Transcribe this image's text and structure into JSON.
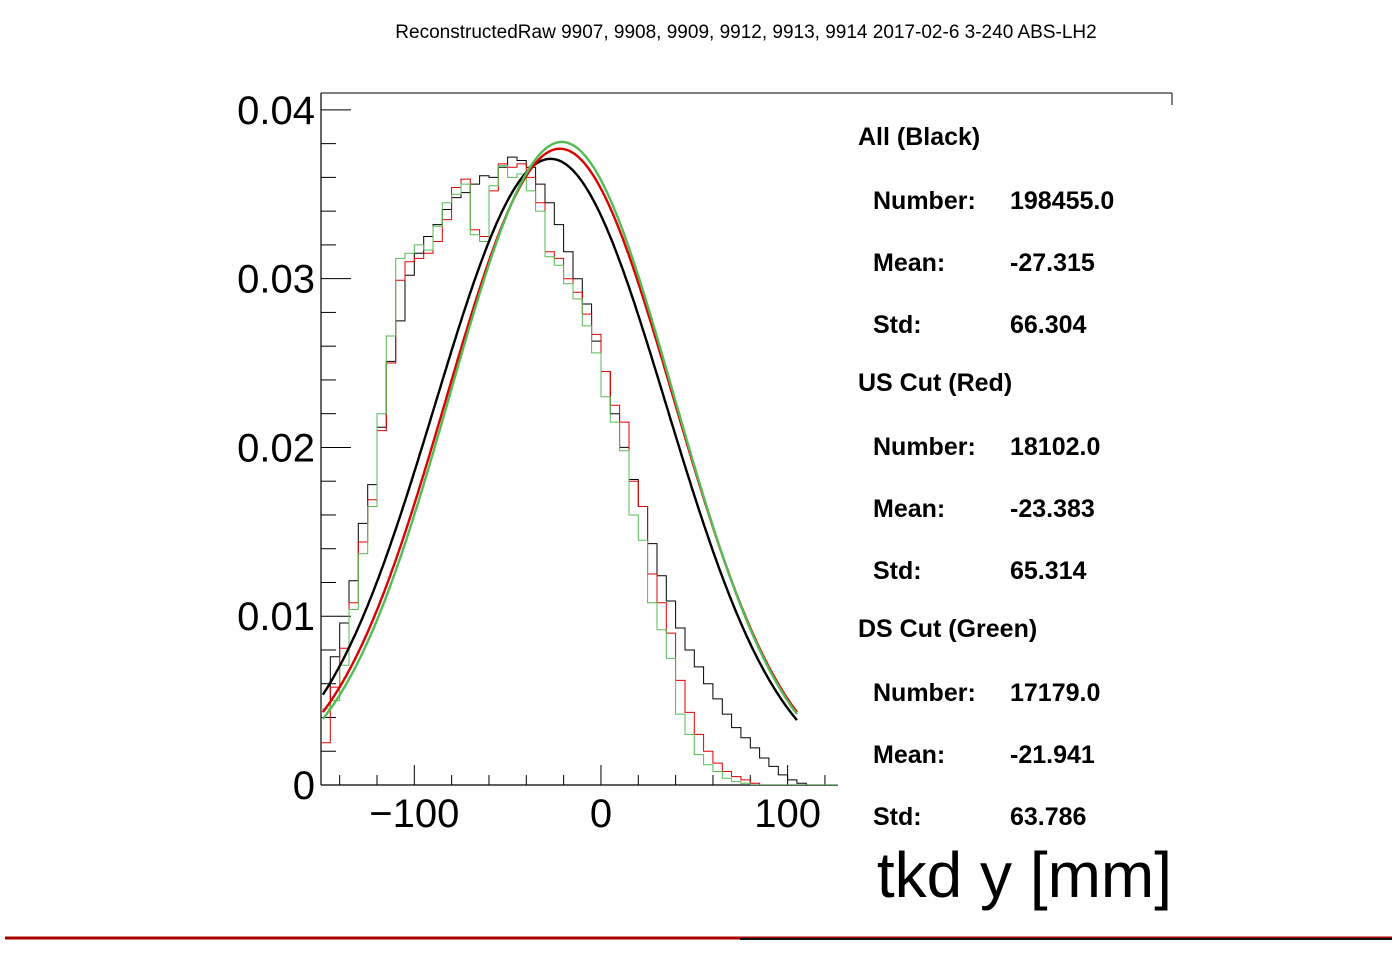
{
  "chart_data": {
    "type": "line",
    "title": "ReconstructedRaw 9907, 9908, 9909, 9912, 9913, 9914 2017-02-6 3-240 ABS-LH2",
    "xlabel": "tkd y [mm]",
    "ylabel": "",
    "xlim": [
      -150,
      127
    ],
    "ylim": [
      0,
      0.041
    ],
    "x_ticks": [
      -100,
      0,
      100
    ],
    "x_tick_labels": [
      "−100",
      "0",
      "100"
    ],
    "y_ticks": [
      0,
      0.01,
      0.02,
      0.03,
      0.04
    ],
    "y_tick_labels": [
      "0",
      "0.01",
      "0.02",
      "0.03",
      "0.04"
    ],
    "bin_edges_start": -150,
    "bin_width": 5,
    "grid": false,
    "stats": [
      {
        "heading": "All (Black)",
        "rows": [
          {
            "label": "Number:",
            "value": "198455.0"
          },
          {
            "label": "Mean:",
            "value": "-27.315"
          },
          {
            "label": "Std:",
            "value": "66.304"
          }
        ]
      },
      {
        "heading": "US Cut (Red)",
        "rows": [
          {
            "label": "Number:",
            "value": "18102.0"
          },
          {
            "label": "Mean:",
            "value": "-23.383"
          },
          {
            "label": "Std:",
            "value": "65.314"
          }
        ]
      },
      {
        "heading": "DS Cut (Green)",
        "rows": [
          {
            "label": "Number:",
            "value": "17179.0"
          },
          {
            "label": "Mean:",
            "value": "-21.941"
          },
          {
            "label": "Std:",
            "value": "63.786"
          }
        ]
      }
    ],
    "series": [
      {
        "color": "#000000",
        "mean": -27.315,
        "std": 66.304,
        "fit": {
          "amplitude": 0.0371,
          "mu": -27,
          "sigma": 62,
          "range": [
            -149,
            105
          ]
        },
        "values": [
          0.0045,
          0.0076,
          0.0096,
          0.0121,
          0.0155,
          0.0178,
          0.0212,
          0.0251,
          0.0275,
          0.0302,
          0.0315,
          0.0325,
          0.0332,
          0.0341,
          0.0348,
          0.0351,
          0.0356,
          0.0361,
          0.036,
          0.0366,
          0.0372,
          0.037,
          0.0366,
          0.0356,
          0.0345,
          0.0332,
          0.0316,
          0.03,
          0.0285,
          0.0263,
          0.0245,
          0.022,
          0.02,
          0.0181,
          0.0165,
          0.0143,
          0.0124,
          0.0109,
          0.0093,
          0.008,
          0.007,
          0.006,
          0.0051,
          0.0042,
          0.0034,
          0.0028,
          0.0022,
          0.0016,
          0.0011,
          0.0006,
          0.0003,
          0.0001,
          0.0,
          0.0,
          0.0,
          0.0
        ]
      },
      {
        "color": "#dd0000",
        "mean": -23.383,
        "std": 65.314,
        "fit": {
          "amplitude": 0.0377,
          "mu": -22,
          "sigma": 61,
          "range": [
            -149,
            105
          ]
        },
        "values": [
          0.0025,
          0.0058,
          0.0081,
          0.0108,
          0.0144,
          0.0169,
          0.021,
          0.025,
          0.0299,
          0.031,
          0.0312,
          0.0315,
          0.0322,
          0.0335,
          0.0354,
          0.0359,
          0.0329,
          0.0325,
          0.0352,
          0.0368,
          0.0366,
          0.0368,
          0.036,
          0.0345,
          0.0316,
          0.0312,
          0.03,
          0.0292,
          0.0279,
          0.0267,
          0.0245,
          0.0225,
          0.0215,
          0.018,
          0.0165,
          0.0125,
          0.0108,
          0.009,
          0.0062,
          0.0043,
          0.003,
          0.002,
          0.0013,
          0.0008,
          0.0005,
          0.0003,
          0.0001,
          0.0,
          0.0,
          0.0,
          0.0,
          0.0,
          0.0,
          0.0,
          0.0,
          0.0
        ]
      },
      {
        "color": "#55bb55",
        "mean": -21.941,
        "std": 63.786,
        "fit": {
          "amplitude": 0.0381,
          "mu": -21,
          "sigma": 60,
          "range": [
            -149,
            105
          ]
        },
        "values": [
          0.0045,
          0.005,
          0.0071,
          0.0104,
          0.0137,
          0.0165,
          0.022,
          0.0266,
          0.0312,
          0.0315,
          0.032,
          0.0317,
          0.0331,
          0.0345,
          0.035,
          0.0356,
          0.0326,
          0.0322,
          0.0355,
          0.0367,
          0.036,
          0.0362,
          0.0352,
          0.034,
          0.0313,
          0.0308,
          0.0297,
          0.0288,
          0.0272,
          0.0256,
          0.023,
          0.0215,
          0.0198,
          0.016,
          0.0145,
          0.0108,
          0.0092,
          0.0075,
          0.0042,
          0.003,
          0.0018,
          0.0012,
          0.0008,
          0.0004,
          0.0002,
          0.0001,
          0.0,
          0.0,
          0.0,
          0.0,
          0.0,
          0.0,
          0.0,
          0.0,
          0.0,
          0.0
        ]
      }
    ]
  }
}
